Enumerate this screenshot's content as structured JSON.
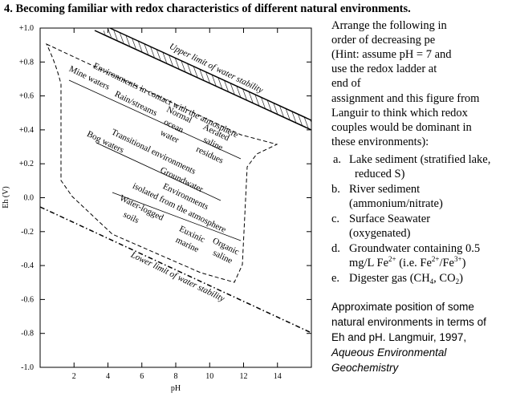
{
  "header": {
    "title": "4.  Becoming familiar with redox characteristics of different natural environments."
  },
  "figure": {
    "y_label": "Eh (V)",
    "x_label": "pH",
    "ylim": [
      -1.0,
      1.0
    ],
    "xlim": [
      0,
      16
    ],
    "yticks": [
      {
        "value": 1.0,
        "label": "+1.0"
      },
      {
        "value": 0.8,
        "label": "+0.8"
      },
      {
        "value": 0.6,
        "label": "+0.6"
      },
      {
        "value": 0.4,
        "label": "+0.4"
      },
      {
        "value": 0.2,
        "label": "+0.2"
      },
      {
        "value": 0.0,
        "label": "0.0"
      },
      {
        "value": -0.2,
        "label": "-0.2"
      },
      {
        "value": -0.4,
        "label": "-0.4"
      },
      {
        "value": -0.6,
        "label": "-0.6"
      },
      {
        "value": -0.8,
        "label": "-0.8"
      },
      {
        "value": -1.0,
        "label": "-1.0"
      }
    ],
    "xticks": [
      2,
      4,
      6,
      8,
      10,
      12,
      14
    ],
    "labels": [
      "Upper limit of water stability",
      "Environments in contact with the atmosphere",
      "Mine waters",
      "Rain/streams",
      "Normal",
      "ocean",
      "water",
      "Aerated",
      "saline",
      "residues",
      "Transitional environments",
      "Bog waters",
      "Groundwater",
      "Environments",
      "isolated from the atmosphere",
      "Water-logged",
      "soils",
      "Euxinic",
      "marine",
      "Organic",
      "saline",
      "Lower limit of water stability"
    ]
  },
  "instructions": {
    "lines": [
      "Arrange the following in",
      "order of decreasing pe",
      "(Hint: assume pH = 7 and",
      "use the redox ladder at",
      "end of",
      "assignment and this figure from",
      "Languir to think which redox",
      "couples would be dominant in",
      "these environments):"
    ],
    "items": [
      {
        "letter": "a.",
        "lines": [
          "Lake sediment (stratified lake,",
          "reduced S)"
        ]
      },
      {
        "letter": "b.",
        "lines": [
          "River sediment",
          "(ammonium/nitrate)"
        ]
      },
      {
        "letter": "c.",
        "lines": [
          "Surface Seawater",
          "(oxygenated)"
        ]
      },
      {
        "letter": "d.",
        "lines": [
          "Groundwater containing 0.5"
        ],
        "line2": [
          "mg/L Fe",
          "2+",
          " (i.e. Fe",
          "2+",
          "/Fe",
          "3+",
          ")"
        ]
      },
      {
        "letter": "e.",
        "line": [
          "Digester gas (CH",
          "4",
          ", CO",
          "2",
          ")"
        ]
      }
    ]
  },
  "caption": {
    "lines": [
      "Approximate position of some",
      "natural environments in terms of",
      "Eh and pH. Langmuir, 1997,"
    ],
    "italic_lines": [
      "Aqueous Environmental",
      "Geochemistry"
    ]
  }
}
